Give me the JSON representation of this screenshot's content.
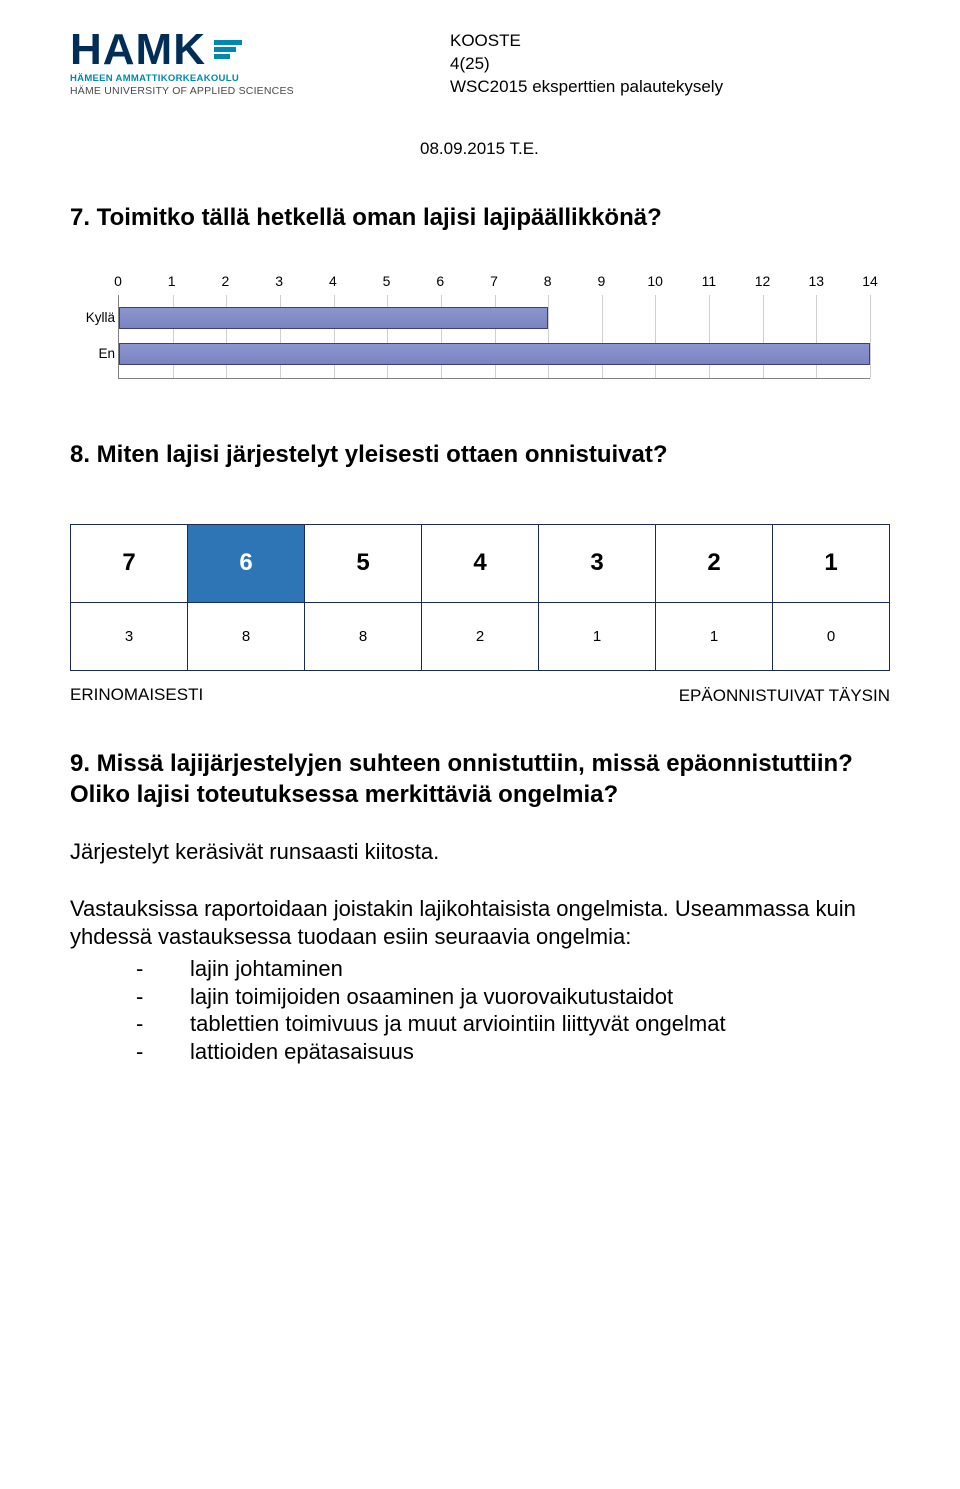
{
  "logo": {
    "title": "HAMK",
    "sub1": "HÄMEEN AMMATTIKORKEAKOULU",
    "sub2": "HÄME UNIVERSITY OF APPLIED SCIENCES",
    "color_primary": "#002e56",
    "color_accent": "#0088b0"
  },
  "header_meta": {
    "line1": "KOOSTE",
    "line2": "4(25)",
    "line3": "WSC2015 eksperttien palautekysely"
  },
  "date_line": "08.09.2015  T.E.",
  "q7": {
    "title": "7. Toimitko tällä hetkellä oman lajisi lajipäällikkönä?",
    "x_max": 14,
    "ticks": [
      0,
      1,
      2,
      3,
      4,
      5,
      6,
      7,
      8,
      9,
      10,
      11,
      12,
      13,
      14
    ],
    "grid_color": "#cfcfcf",
    "border_color": "#808080",
    "bar_fill": "#8b95cf",
    "bar_stroke": "#404070",
    "rows": [
      {
        "label": "Kyllä",
        "value": 8
      },
      {
        "label": "En",
        "value": 14
      }
    ]
  },
  "q8": {
    "title": "8. Miten lajisi järjestelyt yleisesti ottaen onnistuivat?",
    "scale_headers": [
      "7",
      "6",
      "5",
      "4",
      "3",
      "2",
      "1"
    ],
    "scale_values": [
      "3",
      "8",
      "8",
      "2",
      "1",
      "1",
      "0"
    ],
    "highlight_index": 1,
    "highlight_color": "#2e75b6",
    "cell_border": "#1a2a5a",
    "label_left": "ERINOMAISESTI",
    "label_right": "EPÄONNISTUIVAT TÄYSIN"
  },
  "q9": {
    "title": "9. Missä lajijärjestelyjen suhteen onnistuttiin, missä epäonnistuttiin? Oliko lajisi toteutuksessa merkittäviä ongelmia?",
    "para1": "Järjestelyt keräsivät runsaasti kiitosta.",
    "para2": "Vastauksissa raportoidaan joistakin lajikohtaisista ongelmista. Useammassa kuin yhdessä vastauksessa tuodaan esiin seuraavia ongelmia:",
    "bullets": [
      "lajin johtaminen",
      "lajin toimijoiden osaaminen ja vuorovaikutustaidot",
      "tablettien toimivuus ja muut arviointiin liittyvät ongelmat",
      "lattioiden epätasaisuus"
    ]
  }
}
